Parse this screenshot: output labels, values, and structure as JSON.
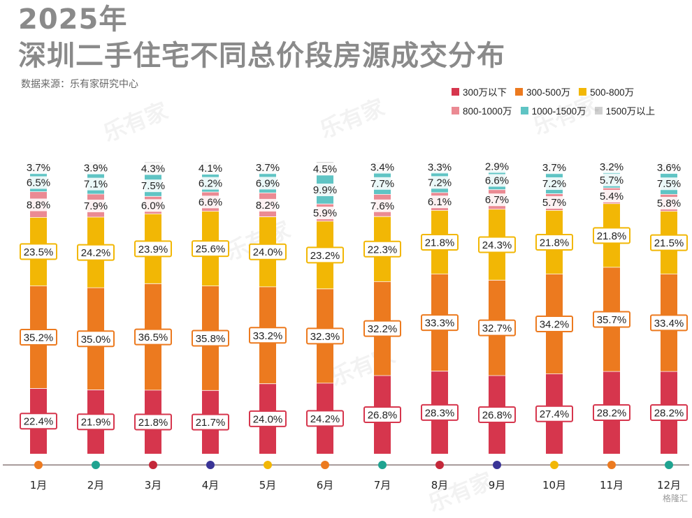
{
  "title_line1": "2025年",
  "title_line2": "深圳二手住宅不同总价段房源成交分布",
  "source": "数据来源：乐有家研究中心",
  "watermark": "乐有家",
  "corner_logo": "格隆汇",
  "chart_data": {
    "type": "bar",
    "stacked": true,
    "normalized": true,
    "title": "2025年 深圳二手住宅不同总价段房源成交分布",
    "unit": "%",
    "legend_position": "top-right",
    "categories": [
      "1月",
      "2月",
      "3月",
      "4月",
      "5月",
      "6月",
      "7月",
      "8月",
      "9月",
      "10月",
      "11月",
      "12月"
    ],
    "series": [
      {
        "name": "300万以下",
        "color": "#d6364d",
        "values": [
          22.4,
          21.9,
          21.8,
          21.7,
          24.0,
          24.2,
          26.8,
          28.3,
          26.8,
          27.4,
          28.2,
          28.2
        ]
      },
      {
        "name": "300-500万",
        "color": "#ec7a1f",
        "values": [
          35.2,
          35.0,
          36.5,
          35.8,
          33.2,
          32.3,
          32.2,
          33.3,
          32.7,
          34.2,
          35.7,
          33.4
        ]
      },
      {
        "name": "500-800万",
        "color": "#f2b705",
        "values": [
          23.5,
          24.2,
          23.9,
          25.6,
          24.0,
          23.2,
          22.3,
          21.8,
          24.3,
          21.8,
          21.8,
          21.5
        ]
      },
      {
        "name": "800-1000万",
        "color": "#eb8a93",
        "values": [
          8.8,
          7.9,
          6.0,
          6.6,
          8.2,
          5.9,
          7.6,
          6.1,
          6.7,
          5.7,
          5.4,
          5.8
        ]
      },
      {
        "name": "1000-1500万",
        "color": "#5fc4c4",
        "values": [
          6.5,
          7.1,
          7.5,
          6.2,
          6.9,
          9.9,
          7.7,
          7.2,
          6.6,
          7.2,
          5.7,
          7.5
        ]
      },
      {
        "name": "1500万以上",
        "color": "#cfcfcf",
        "values": [
          3.7,
          3.9,
          4.3,
          4.1,
          3.7,
          4.5,
          3.4,
          3.3,
          2.9,
          3.7,
          3.2,
          3.6
        ]
      }
    ],
    "axis_dot_colors": [
      "#ec7a1f",
      "#1fa390",
      "#c4283a",
      "#3a3496",
      "#f2b705",
      "#ec7a1f",
      "#1fa390",
      "#c4283a",
      "#3a3496",
      "#f2b705",
      "#ec7a1f",
      "#1fa390"
    ],
    "ylim": [
      0,
      100
    ]
  }
}
